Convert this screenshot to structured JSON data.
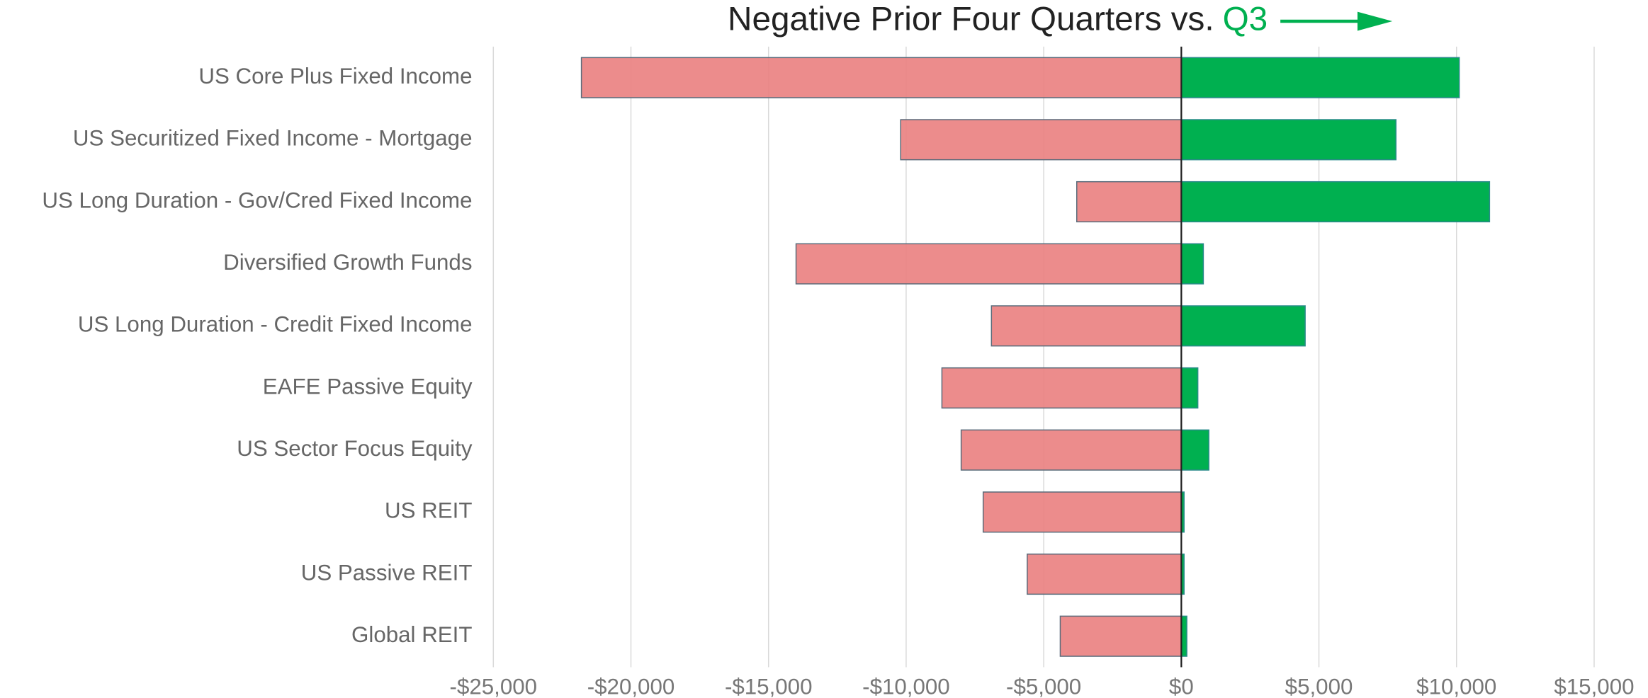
{
  "chart_data": {
    "type": "diverging-bar",
    "title": "Negative Prior Four Quarters vs.",
    "title_highlight": "Q3",
    "categories": [
      "US Core Plus Fixed Income",
      "US Securitized Fixed Income - Mortgage",
      "US Long Duration - Gov/Cred Fixed Income",
      "Diversified Growth Funds",
      "US Long Duration - Credit Fixed Income",
      "EAFE Passive Equity",
      "US Sector Focus Equity",
      "US REIT",
      "US Passive REIT",
      "Global REIT"
    ],
    "series": [
      {
        "color": "#ea8080",
        "values": [
          -21800,
          -10200,
          -3800,
          -14000,
          -6900,
          -8700,
          -8000,
          -7200,
          -5600,
          -4400
        ]
      },
      {
        "color": "#00b050",
        "values": [
          10100,
          7800,
          11200,
          800,
          4500,
          600,
          1000,
          100,
          100,
          200
        ]
      }
    ],
    "xlim": [
      -25000,
      15000
    ],
    "xticks": [
      {
        "value": -25000,
        "label": "-$25,000"
      },
      {
        "value": -20000,
        "label": "-$20,000"
      },
      {
        "value": -15000,
        "label": "-$15,000"
      },
      {
        "value": -10000,
        "label": "-$10,000"
      },
      {
        "value": -5000,
        "label": "-$5,000"
      },
      {
        "value": 0,
        "label": "$0"
      },
      {
        "value": 5000,
        "label": "$5,000"
      },
      {
        "value": 10000,
        "label": "$10,000"
      },
      {
        "value": 15000,
        "label": "$15,000"
      }
    ],
    "grid": true
  }
}
